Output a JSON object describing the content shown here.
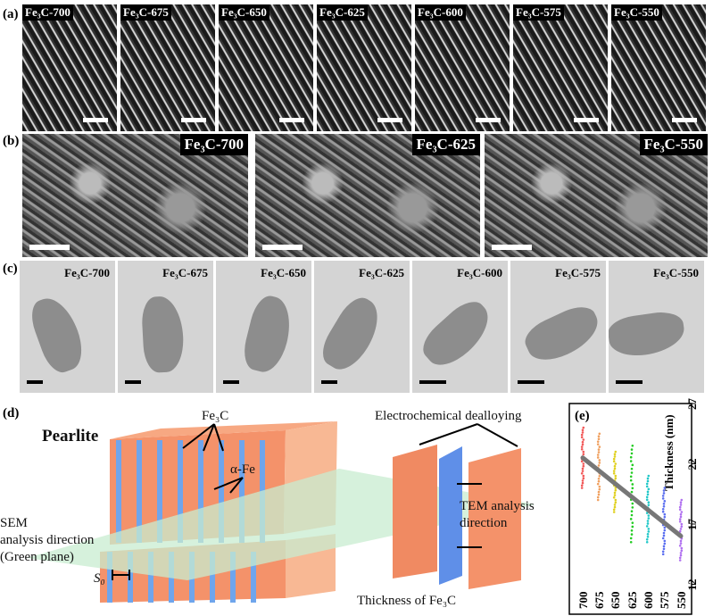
{
  "panels": {
    "a": "(a)",
    "b": "(b)",
    "c": "(c)",
    "d": "(d)",
    "e": "(e)"
  },
  "row_a": [
    "Fe₃C-700",
    "Fe₃C-675",
    "Fe₃C-650",
    "Fe₃C-625",
    "Fe₃C-600",
    "Fe₃C-575",
    "Fe₃C-550"
  ],
  "row_b": [
    "Fe₃C-700",
    "Fe₃C-625",
    "Fe₃C-550"
  ],
  "row_c": [
    "Fe₃C-700",
    "Fe₃C-675",
    "Fe₃C-650",
    "Fe₃C-625",
    "Fe₃C-600",
    "Fe₃C-575",
    "Fe₃C-550"
  ],
  "schematic": {
    "title": "Pearlite",
    "fe3c": "Fe₃C",
    "alpha_fe": "α-Fe",
    "sem_line1": "SEM",
    "sem_line2": "analysis direction",
    "sem_line3": "(Green plane)",
    "s0": "S₀",
    "dealloying": "Electrochemical dealloying",
    "tem_line1": "TEM analysis",
    "tem_line2": "direction",
    "thickness": "Thickness of Fe₃C",
    "colors": {
      "alpha_fe": "#f4926a",
      "fe3c": "#6fa5ec",
      "plane": "#c8ecd0"
    }
  },
  "chart_data": {
    "type": "scatter",
    "ylabel": "Thickness (nm)",
    "categories": [
      "700",
      "675",
      "650",
      "625",
      "600",
      "575",
      "550"
    ],
    "yticks": [
      27,
      22,
      17,
      12
    ],
    "ylim": [
      12,
      27
    ],
    "series": [
      {
        "category": "700",
        "min": 20,
        "max": 25,
        "color": "#f25a5a"
      },
      {
        "category": "675",
        "min": 19,
        "max": 24.5,
        "color": "#f0a060"
      },
      {
        "category": "650",
        "min": 18,
        "max": 23,
        "color": "#e0d020"
      },
      {
        "category": "625",
        "min": 15.5,
        "max": 23.5,
        "color": "#22cc22"
      },
      {
        "category": "600",
        "min": 15.5,
        "max": 21,
        "color": "#22c8c8"
      },
      {
        "category": "575",
        "min": 14.5,
        "max": 20,
        "color": "#5a6ef0"
      },
      {
        "category": "550",
        "min": 14,
        "max": 19,
        "color": "#b070f0"
      }
    ],
    "trend": {
      "start": 22.5,
      "end": 16,
      "color": "#777777"
    },
    "orientation": "rotated 90°"
  }
}
